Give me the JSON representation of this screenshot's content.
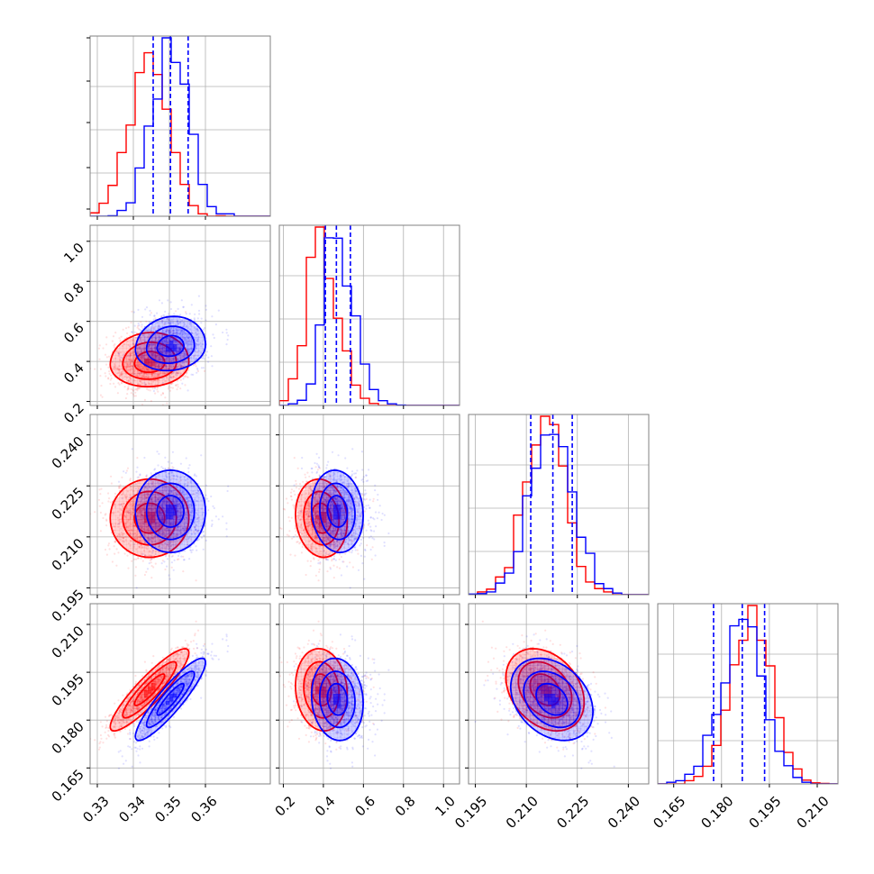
{
  "chart_data": {
    "type": "corner",
    "colors": {
      "a": "#ff0000",
      "b": "#0000ff"
    },
    "grid": true,
    "params": [
      {
        "range": [
          0.328,
          0.378
        ],
        "ticks": [
          "0.33",
          "0.34",
          "0.35",
          "0.36"
        ],
        "tick_values": [
          0.33,
          0.34,
          0.35,
          0.36
        ],
        "quantiles_b": [
          0.3455,
          0.3503,
          0.3552
        ]
      },
      {
        "range": [
          0.18,
          1.08
        ],
        "ticks": [
          "0.2",
          "0.4",
          "0.6",
          "0.8",
          "1.0"
        ],
        "tick_values": [
          0.2,
          0.4,
          0.6,
          0.8,
          1.0
        ],
        "quantiles_b": [
          0.41,
          0.465,
          0.535
        ]
      },
      {
        "range": [
          0.193,
          0.246
        ],
        "ticks": [
          "0.195",
          "0.210",
          "0.225",
          "0.240"
        ],
        "tick_values": [
          0.195,
          0.21,
          0.225,
          0.24
        ],
        "quantiles_b": [
          0.2113,
          0.2178,
          0.2235
        ]
      },
      {
        "range": [
          0.16,
          0.2165
        ],
        "ticks": [
          "0.165",
          "0.180",
          "0.195",
          "0.210"
        ],
        "tick_values": [
          0.165,
          0.18,
          0.195,
          0.21
        ],
        "quantiles_b": [
          0.1775,
          0.1865,
          0.1935
        ]
      }
    ],
    "series": [
      {
        "name": "",
        "color": "#ff0000",
        "mean": [
          0.3445,
          0.39,
          0.2155,
          0.1895
        ],
        "std": [
          0.0055,
          0.065,
          0.0058,
          0.0065
        ],
        "corr": [
          [
            1,
            0.05,
            0.0,
            0.9
          ],
          [
            0.05,
            1,
            -0.1,
            -0.1
          ],
          [
            0.0,
            -0.1,
            1,
            -0.3
          ],
          [
            0.9,
            -0.1,
            -0.3,
            1
          ]
        ]
      },
      {
        "name": "",
        "color": "#0000ff",
        "mean": [
          0.3503,
          0.47,
          0.2175,
          0.1865
        ],
        "std": [
          0.0049,
          0.065,
          0.0061,
          0.0065
        ],
        "corr": [
          [
            1,
            0.1,
            0.0,
            0.9
          ],
          [
            0.1,
            1,
            -0.1,
            -0.1
          ],
          [
            0.0,
            -0.1,
            1,
            -0.3
          ],
          [
            0.9,
            -0.1,
            -0.3,
            1
          ]
        ]
      }
    ]
  }
}
